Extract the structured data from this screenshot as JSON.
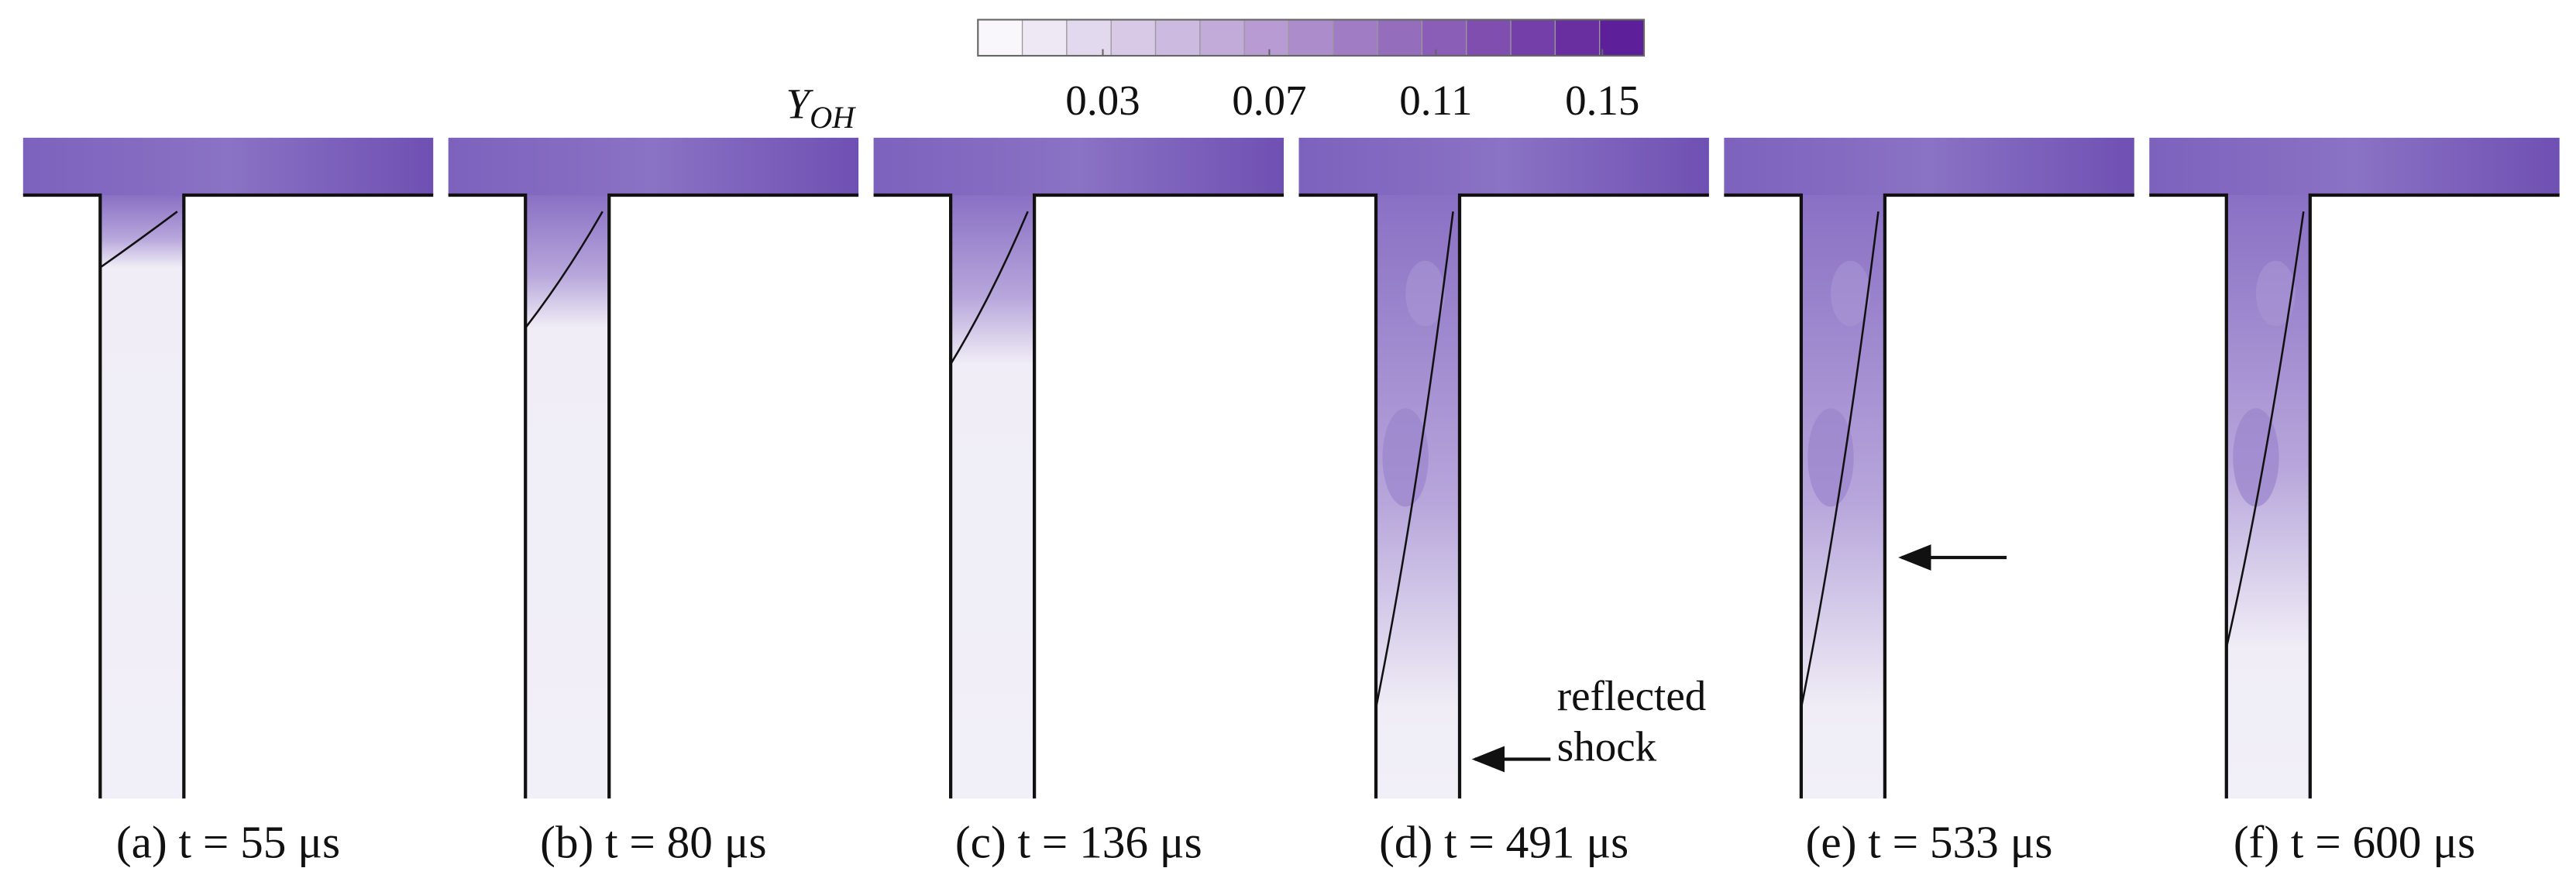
{
  "colorbar": {
    "label": "Y",
    "label_sub": "OH",
    "clim": [
      0,
      0.16
    ],
    "ticks": [
      0.03,
      0.07,
      0.11,
      0.15
    ]
  },
  "panels": [
    {
      "caption": "(a) t = 55 μs"
    },
    {
      "caption": "(b) t = 80 μs"
    },
    {
      "caption": "(c) t = 136 μs"
    },
    {
      "caption": "(d) t = 491 μs"
    },
    {
      "caption": "(e) t = 533 μs"
    },
    {
      "caption": "(f) t = 600 μs"
    }
  ],
  "annotation": {
    "lines": [
      "reflected",
      "shock"
    ]
  }
}
